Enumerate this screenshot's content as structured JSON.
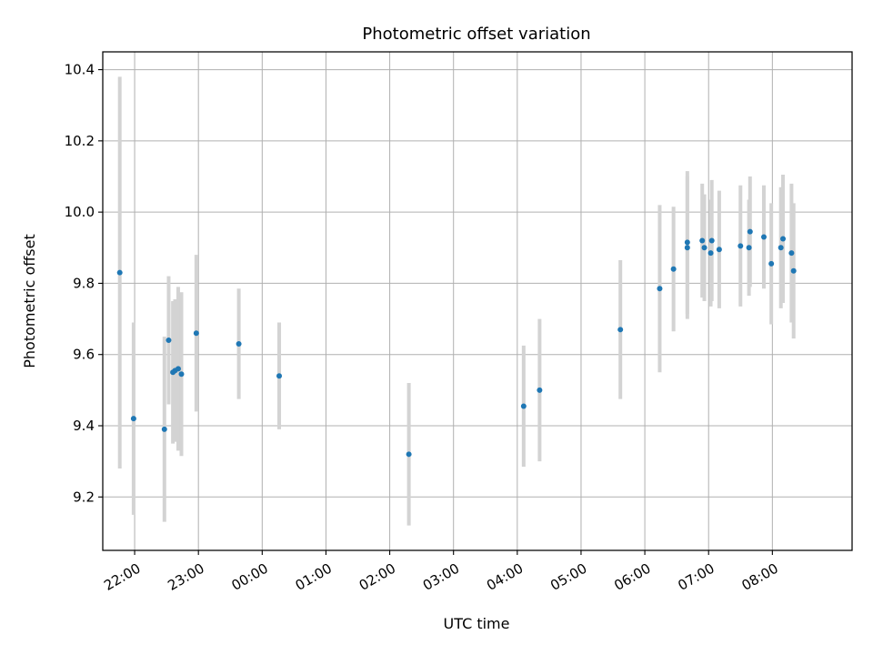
{
  "chart_data": {
    "type": "scatter",
    "title": "Photometric offset variation",
    "xlabel": "UTC time",
    "ylabel": "Photometric offset",
    "xlim": [
      "21:30",
      "09:15"
    ],
    "ylim": [
      9.05,
      10.45
    ],
    "grid": true,
    "x_ticks": [
      "22:00",
      "23:00",
      "00:00",
      "01:00",
      "02:00",
      "03:00",
      "04:00",
      "05:00",
      "06:00",
      "07:00",
      "08:00"
    ],
    "y_ticks": [
      "9.2",
      "9.4",
      "9.6",
      "9.8",
      "10.0",
      "10.2",
      "10.4"
    ],
    "colors": {
      "point": "#1f77b4",
      "errorbar": "#d3d3d3",
      "grid": "#b0b0b0"
    },
    "series": [
      {
        "points": [
          {
            "x": "21:46",
            "y": 9.83,
            "err": 0.55
          },
          {
            "x": "21:59",
            "y": 9.42,
            "err": 0.27
          },
          {
            "x": "22:28",
            "y": 9.39,
            "err": 0.26
          },
          {
            "x": "22:32",
            "y": 9.64,
            "err": 0.18
          },
          {
            "x": "22:36",
            "y": 9.55,
            "err": 0.2
          },
          {
            "x": "22:38",
            "y": 9.555,
            "err": 0.2
          },
          {
            "x": "22:41",
            "y": 9.56,
            "err": 0.23
          },
          {
            "x": "22:44",
            "y": 9.545,
            "err": 0.23
          },
          {
            "x": "22:58",
            "y": 9.66,
            "err": 0.22
          },
          {
            "x": "23:38",
            "y": 9.63,
            "err": 0.155
          },
          {
            "x": "00:16",
            "y": 9.54,
            "err": 0.15
          },
          {
            "x": "02:18",
            "y": 9.32,
            "err": 0.2
          },
          {
            "x": "04:06",
            "y": 9.455,
            "err": 0.17
          },
          {
            "x": "04:21",
            "y": 9.5,
            "err": 0.2
          },
          {
            "x": "05:37",
            "y": 9.67,
            "err": 0.195
          },
          {
            "x": "06:14",
            "y": 9.785,
            "err": 0.235
          },
          {
            "x": "06:27",
            "y": 9.84,
            "err": 0.175
          },
          {
            "x": "06:40",
            "y": 9.9,
            "err": 0.2
          },
          {
            "x": "06:40",
            "y": 9.915,
            "err": 0.2
          },
          {
            "x": "06:54",
            "y": 9.92,
            "err": 0.16
          },
          {
            "x": "06:56",
            "y": 9.9,
            "err": 0.15
          },
          {
            "x": "07:02",
            "y": 9.885,
            "err": 0.15
          },
          {
            "x": "07:03",
            "y": 9.92,
            "err": 0.17
          },
          {
            "x": "07:10",
            "y": 9.895,
            "err": 0.165
          },
          {
            "x": "07:30",
            "y": 9.905,
            "err": 0.17
          },
          {
            "x": "07:38",
            "y": 9.9,
            "err": 0.135
          },
          {
            "x": "07:39",
            "y": 9.945,
            "err": 0.155
          },
          {
            "x": "07:52",
            "y": 9.93,
            "err": 0.145
          },
          {
            "x": "07:59",
            "y": 9.855,
            "err": 0.17
          },
          {
            "x": "08:08",
            "y": 9.9,
            "err": 0.17
          },
          {
            "x": "08:10",
            "y": 9.925,
            "err": 0.18
          },
          {
            "x": "08:18",
            "y": 9.885,
            "err": 0.195
          },
          {
            "x": "08:20",
            "y": 9.835,
            "err": 0.19
          }
        ]
      }
    ]
  }
}
